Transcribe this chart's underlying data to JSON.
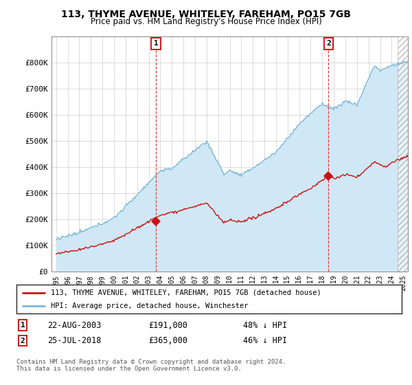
{
  "title": "113, THYME AVENUE, WHITELEY, FAREHAM, PO15 7GB",
  "subtitle": "Price paid vs. HM Land Registry's House Price Index (HPI)",
  "ylim": [
    0,
    900000
  ],
  "yticks": [
    0,
    100000,
    200000,
    300000,
    400000,
    500000,
    600000,
    700000,
    800000
  ],
  "ytick_labels": [
    "£0",
    "£100K",
    "£200K",
    "£300K",
    "£400K",
    "£500K",
    "£600K",
    "£700K",
    "£800K"
  ],
  "hpi_color": "#7ab8d8",
  "hpi_fill_color": "#d0e8f5",
  "price_color": "#cc1111",
  "sale1_x": 2003.63,
  "sale1_y": 191000,
  "sale2_x": 2018.54,
  "sale2_y": 365000,
  "hatch_start": 2024.5,
  "xlim_left": 1994.6,
  "xlim_right": 2025.4,
  "legend_line1": "113, THYME AVENUE, WHITELEY, FAREHAM, PO15 7GB (detached house)",
  "legend_line2": "HPI: Average price, detached house, Winchester",
  "note1_date": "22-AUG-2003",
  "note1_price": "£191,000",
  "note1_hpi": "48% ↓ HPI",
  "note2_date": "25-JUL-2018",
  "note2_price": "£365,000",
  "note2_hpi": "46% ↓ HPI",
  "footer": "Contains HM Land Registry data © Crown copyright and database right 2024.\nThis data is licensed under the Open Government Licence v3.0.",
  "background_color": "#ffffff",
  "grid_color": "#cccccc"
}
